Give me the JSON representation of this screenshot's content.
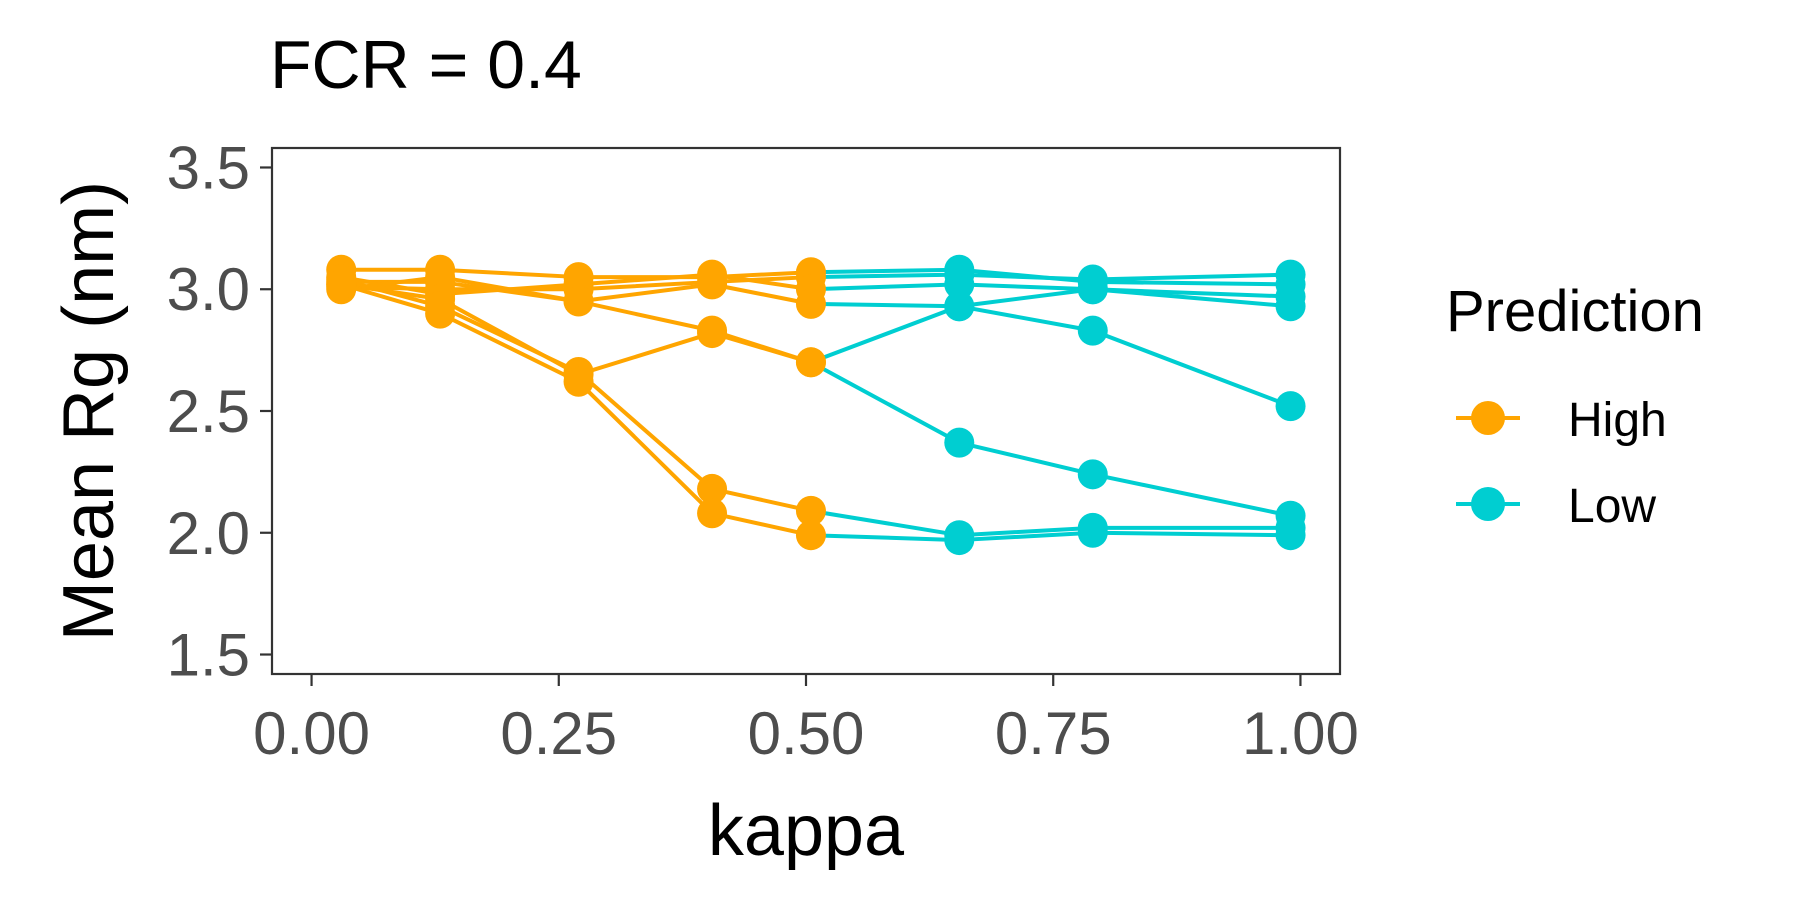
{
  "chart_data": {
    "type": "line",
    "title": "FCR = 0.4",
    "xlabel": "kappa",
    "ylabel": "Mean Rg (nm)",
    "xlim": [
      -0.04,
      1.04
    ],
    "ylim": [
      1.42,
      3.58
    ],
    "xticks": [
      0,
      0.25,
      0.5,
      0.75,
      1
    ],
    "xtick_labels": [
      "0.00",
      "0.25",
      "0.50",
      "0.75",
      "1.00"
    ],
    "yticks": [
      1.5,
      2.0,
      2.5,
      3.0,
      3.5
    ],
    "ytick_labels": [
      "1.5",
      "2.0",
      "2.5",
      "3.0",
      "3.5"
    ],
    "grid": false,
    "legend": {
      "title": "Prediction",
      "position": "right",
      "entries": [
        {
          "label": "High",
          "color": "#FFA500"
        },
        {
          "label": "Low",
          "color": "#00CED1"
        }
      ]
    },
    "colors": {
      "High": "#FFA500",
      "Low": "#00CED1"
    },
    "series": [
      {
        "points": [
          [
            0.03,
            3.01
          ],
          [
            0.13,
            3.0
          ],
          [
            0.27,
            3.0
          ],
          [
            0.405,
            3.03
          ],
          [
            0.505,
            3.05
          ],
          [
            0.655,
            3.06
          ],
          [
            0.79,
            3.04
          ],
          [
            0.99,
            3.06
          ]
        ],
        "prediction": [
          "High",
          "High",
          "High",
          "High",
          "High",
          "Low",
          "Low",
          "Low"
        ]
      },
      {
        "points": [
          [
            0.03,
            3.08
          ],
          [
            0.13,
            3.08
          ],
          [
            0.27,
            3.05
          ],
          [
            0.405,
            3.05
          ],
          [
            0.505,
            3.07
          ],
          [
            0.655,
            3.08
          ],
          [
            0.79,
            3.03
          ],
          [
            0.99,
            3.02
          ]
        ],
        "prediction": [
          "High",
          "High",
          "High",
          "High",
          "High",
          "Low",
          "Low",
          "Low"
        ]
      },
      {
        "points": [
          [
            0.03,
            3.05
          ],
          [
            0.13,
            2.98
          ],
          [
            0.27,
            3.02
          ],
          [
            0.405,
            3.06
          ],
          [
            0.505,
            3.0
          ],
          [
            0.655,
            3.02
          ],
          [
            0.79,
            3.0
          ],
          [
            0.99,
            2.97
          ]
        ],
        "prediction": [
          "High",
          "High",
          "High",
          "High",
          "High",
          "Low",
          "Low",
          "Low"
        ]
      },
      {
        "points": [
          [
            0.03,
            3.03
          ],
          [
            0.13,
            3.03
          ],
          [
            0.27,
            2.95
          ],
          [
            0.405,
            3.02
          ],
          [
            0.505,
            2.94
          ],
          [
            0.655,
            2.93
          ],
          [
            0.79,
            3.0
          ],
          [
            0.99,
            2.93
          ]
        ],
        "prediction": [
          "High",
          "High",
          "High",
          "High",
          "High",
          "Low",
          "Low",
          "Low"
        ]
      },
      {
        "points": [
          [
            0.03,
            3.0
          ],
          [
            0.13,
            3.05
          ],
          [
            0.27,
            2.95
          ],
          [
            0.405,
            2.83
          ],
          [
            0.505,
            2.7
          ],
          [
            0.655,
            2.93
          ],
          [
            0.79,
            2.83
          ],
          [
            0.99,
            2.52
          ]
        ],
        "prediction": [
          "High",
          "High",
          "High",
          "High",
          "High",
          "Low",
          "Low",
          "Low"
        ]
      },
      {
        "points": [
          [
            0.03,
            3.02
          ],
          [
            0.13,
            2.96
          ],
          [
            0.27,
            2.65
          ],
          [
            0.405,
            2.82
          ],
          [
            0.505,
            2.7
          ],
          [
            0.655,
            2.37
          ],
          [
            0.79,
            2.24
          ],
          [
            0.99,
            2.07
          ]
        ],
        "prediction": [
          "High",
          "High",
          "High",
          "High",
          "High",
          "Low",
          "Low",
          "Low"
        ]
      },
      {
        "points": [
          [
            0.03,
            3.04
          ],
          [
            0.13,
            2.93
          ],
          [
            0.27,
            2.66
          ],
          [
            0.405,
            2.18
          ],
          [
            0.505,
            2.09
          ],
          [
            0.655,
            1.99
          ],
          [
            0.79,
            2.02
          ],
          [
            0.99,
            2.02
          ]
        ],
        "prediction": [
          "High",
          "High",
          "High",
          "High",
          "High",
          "Low",
          "Low",
          "Low"
        ]
      },
      {
        "points": [
          [
            0.03,
            3.02
          ],
          [
            0.13,
            2.9
          ],
          [
            0.27,
            2.62
          ],
          [
            0.405,
            2.08
          ],
          [
            0.505,
            1.99
          ],
          [
            0.655,
            1.97
          ],
          [
            0.79,
            2.0
          ],
          [
            0.99,
            1.99
          ]
        ],
        "prediction": [
          "High",
          "High",
          "High",
          "High",
          "High",
          "Low",
          "Low",
          "Low"
        ]
      }
    ]
  }
}
